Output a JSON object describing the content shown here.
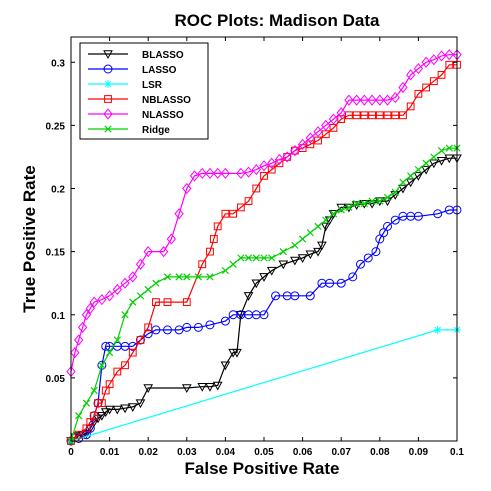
{
  "chart_data": {
    "type": "line",
    "title": "ROC Plots: Madison Data",
    "xlabel": "False Positive Rate",
    "ylabel": "True Positive Rate",
    "xlim": [
      0,
      0.1
    ],
    "ylim": [
      0,
      0.32
    ],
    "xticks": [
      0,
      0.01,
      0.02,
      0.03,
      0.04,
      0.05,
      0.06,
      0.07,
      0.08,
      0.09,
      0.1
    ],
    "xtick_labels": [
      "0",
      "0.01",
      "0.02",
      "0.03",
      "0.04",
      "0.05",
      "0.06",
      "0.07",
      "0.08",
      "0.09",
      "0.1"
    ],
    "yticks": [
      0.05,
      0.1,
      0.15,
      0.2,
      0.25,
      0.3
    ],
    "ytick_labels": [
      "0.05",
      "0.1",
      "0.15",
      "0.2",
      "0.25",
      "0.3"
    ],
    "grid": false,
    "legend_position": "top-left",
    "series": [
      {
        "name": "BLASSO",
        "color": "#000000",
        "marker": "triangle-down",
        "x": [
          0,
          0.001,
          0.002,
          0.003,
          0.004,
          0.005,
          0.006,
          0.007,
          0.008,
          0.009,
          0.01,
          0.012,
          0.014,
          0.016,
          0.018,
          0.02,
          0.03,
          0.034,
          0.036,
          0.038,
          0.04,
          0.042,
          0.043,
          0.044,
          0.046,
          0.048,
          0.05,
          0.052,
          0.055,
          0.058,
          0.06,
          0.062,
          0.064,
          0.065,
          0.066,
          0.067,
          0.068,
          0.07,
          0.072,
          0.074,
          0.076,
          0.078,
          0.08,
          0.082,
          0.084,
          0.086,
          0.088,
          0.09,
          0.092,
          0.094,
          0.096,
          0.098,
          0.1
        ],
        "y": [
          0,
          0.003,
          0.004,
          0.005,
          0.006,
          0.01,
          0.015,
          0.018,
          0.02,
          0.023,
          0.025,
          0.025,
          0.026,
          0.027,
          0.03,
          0.042,
          0.042,
          0.043,
          0.043,
          0.044,
          0.06,
          0.07,
          0.07,
          0.1,
          0.115,
          0.125,
          0.13,
          0.135,
          0.14,
          0.143,
          0.145,
          0.148,
          0.15,
          0.155,
          0.17,
          0.175,
          0.18,
          0.185,
          0.185,
          0.187,
          0.188,
          0.188,
          0.19,
          0.19,
          0.195,
          0.2,
          0.205,
          0.21,
          0.215,
          0.22,
          0.222,
          0.224,
          0.224
        ]
      },
      {
        "name": "LASSO",
        "color": "#0000ff",
        "marker": "circle",
        "x": [
          0,
          0.002,
          0.004,
          0.005,
          0.006,
          0.007,
          0.008,
          0.009,
          0.01,
          0.012,
          0.014,
          0.016,
          0.018,
          0.02,
          0.022,
          0.025,
          0.028,
          0.03,
          0.033,
          0.036,
          0.04,
          0.042,
          0.044,
          0.046,
          0.048,
          0.05,
          0.053,
          0.056,
          0.058,
          0.062,
          0.065,
          0.067,
          0.07,
          0.073,
          0.075,
          0.077,
          0.079,
          0.08,
          0.081,
          0.082,
          0.084,
          0.086,
          0.088,
          0.09,
          0.095,
          0.098,
          0.1
        ],
        "y": [
          0,
          0.002,
          0.005,
          0.01,
          0.02,
          0.03,
          0.06,
          0.075,
          0.075,
          0.075,
          0.075,
          0.075,
          0.08,
          0.085,
          0.088,
          0.088,
          0.088,
          0.09,
          0.09,
          0.092,
          0.095,
          0.1,
          0.1,
          0.1,
          0.1,
          0.1,
          0.115,
          0.115,
          0.115,
          0.115,
          0.125,
          0.125,
          0.125,
          0.13,
          0.14,
          0.145,
          0.15,
          0.16,
          0.165,
          0.17,
          0.175,
          0.178,
          0.178,
          0.178,
          0.18,
          0.183,
          0.183
        ]
      },
      {
        "name": "LSR",
        "color": "#00ffff",
        "marker": "asterisk",
        "x": [
          0,
          0.095,
          0.1
        ],
        "y": [
          0,
          0.088,
          0.088
        ]
      },
      {
        "name": "NBLASSO",
        "color": "#ff0000",
        "marker": "square",
        "x": [
          0,
          0.002,
          0.004,
          0.005,
          0.006,
          0.007,
          0.008,
          0.009,
          0.01,
          0.012,
          0.014,
          0.016,
          0.018,
          0.02,
          0.022,
          0.025,
          0.03,
          0.034,
          0.036,
          0.037,
          0.038,
          0.04,
          0.042,
          0.044,
          0.046,
          0.048,
          0.05,
          0.052,
          0.054,
          0.056,
          0.058,
          0.06,
          0.062,
          0.064,
          0.066,
          0.068,
          0.07,
          0.072,
          0.074,
          0.076,
          0.078,
          0.08,
          0.082,
          0.084,
          0.086,
          0.088,
          0.09,
          0.092,
          0.094,
          0.096,
          0.098,
          0.1
        ],
        "y": [
          0,
          0.005,
          0.01,
          0.015,
          0.02,
          0.03,
          0.03,
          0.04,
          0.045,
          0.055,
          0.06,
          0.07,
          0.08,
          0.09,
          0.11,
          0.11,
          0.11,
          0.14,
          0.15,
          0.16,
          0.17,
          0.18,
          0.18,
          0.185,
          0.19,
          0.2,
          0.21,
          0.215,
          0.22,
          0.225,
          0.23,
          0.232,
          0.235,
          0.238,
          0.243,
          0.248,
          0.255,
          0.258,
          0.258,
          0.258,
          0.258,
          0.258,
          0.258,
          0.258,
          0.258,
          0.265,
          0.275,
          0.28,
          0.285,
          0.29,
          0.298,
          0.298
        ]
      },
      {
        "name": "NLASSO",
        "color": "#ff00ff",
        "marker": "diamond",
        "x": [
          0,
          0.001,
          0.002,
          0.003,
          0.004,
          0.005,
          0.006,
          0.008,
          0.01,
          0.012,
          0.014,
          0.016,
          0.018,
          0.02,
          0.024,
          0.026,
          0.028,
          0.03,
          0.032,
          0.034,
          0.036,
          0.038,
          0.04,
          0.044,
          0.046,
          0.048,
          0.05,
          0.052,
          0.054,
          0.056,
          0.058,
          0.06,
          0.062,
          0.064,
          0.066,
          0.068,
          0.07,
          0.072,
          0.074,
          0.076,
          0.078,
          0.08,
          0.082,
          0.084,
          0.086,
          0.088,
          0.09,
          0.092,
          0.094,
          0.096,
          0.098,
          0.1
        ],
        "y": [
          0.055,
          0.07,
          0.08,
          0.09,
          0.1,
          0.105,
          0.11,
          0.112,
          0.115,
          0.12,
          0.125,
          0.13,
          0.14,
          0.15,
          0.15,
          0.16,
          0.18,
          0.2,
          0.21,
          0.212,
          0.212,
          0.212,
          0.212,
          0.212,
          0.213,
          0.215,
          0.218,
          0.22,
          0.223,
          0.225,
          0.23,
          0.235,
          0.24,
          0.245,
          0.25,
          0.255,
          0.26,
          0.27,
          0.27,
          0.27,
          0.27,
          0.27,
          0.27,
          0.272,
          0.28,
          0.29,
          0.295,
          0.3,
          0.302,
          0.305,
          0.306,
          0.306
        ]
      },
      {
        "name": "Ridge",
        "color": "#00d000",
        "marker": "x",
        "x": [
          0,
          0.002,
          0.004,
          0.006,
          0.008,
          0.01,
          0.012,
          0.014,
          0.016,
          0.018,
          0.02,
          0.022,
          0.025,
          0.028,
          0.03,
          0.033,
          0.036,
          0.04,
          0.042,
          0.044,
          0.046,
          0.048,
          0.05,
          0.052,
          0.055,
          0.058,
          0.06,
          0.062,
          0.064,
          0.066,
          0.068,
          0.07,
          0.072,
          0.074,
          0.076,
          0.078,
          0.08,
          0.082,
          0.084,
          0.086,
          0.088,
          0.09,
          0.092,
          0.094,
          0.096,
          0.098,
          0.1
        ],
        "y": [
          0,
          0.02,
          0.03,
          0.04,
          0.06,
          0.07,
          0.08,
          0.1,
          0.11,
          0.115,
          0.12,
          0.125,
          0.13,
          0.13,
          0.13,
          0.13,
          0.13,
          0.135,
          0.14,
          0.145,
          0.145,
          0.145,
          0.145,
          0.145,
          0.15,
          0.155,
          0.16,
          0.165,
          0.17,
          0.175,
          0.18,
          0.183,
          0.185,
          0.188,
          0.188,
          0.19,
          0.19,
          0.193,
          0.197,
          0.205,
          0.21,
          0.215,
          0.22,
          0.225,
          0.23,
          0.232,
          0.232
        ]
      }
    ]
  }
}
